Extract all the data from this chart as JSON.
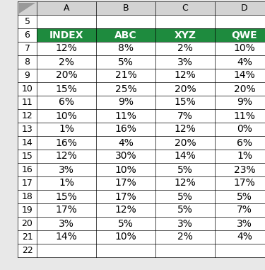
{
  "headers": [
    "INDEX",
    "ABC",
    "XYZ",
    "QWE"
  ],
  "rows": [
    [
      "12%",
      "8%",
      "2%",
      "10%"
    ],
    [
      "2%",
      "5%",
      "3%",
      "4%"
    ],
    [
      "20%",
      "21%",
      "12%",
      "14%"
    ],
    [
      "15%",
      "25%",
      "20%",
      "20%"
    ],
    [
      "6%",
      "9%",
      "15%",
      "9%"
    ],
    [
      "10%",
      "11%",
      "7%",
      "11%"
    ],
    [
      "1%",
      "16%",
      "12%",
      "0%"
    ],
    [
      "16%",
      "4%",
      "20%",
      "6%"
    ],
    [
      "12%",
      "30%",
      "14%",
      "1%"
    ],
    [
      "3%",
      "10%",
      "5%",
      "23%"
    ],
    [
      "1%",
      "17%",
      "12%",
      "17%"
    ],
    [
      "15%",
      "17%",
      "5%",
      "5%"
    ],
    [
      "17%",
      "12%",
      "5%",
      "7%"
    ],
    [
      "3%",
      "5%",
      "3%",
      "3%"
    ],
    [
      "14%",
      "10%",
      "2%",
      "4%"
    ]
  ],
  "row_labels": [
    "7",
    "8",
    "9",
    "10",
    "11",
    "12",
    "13",
    "14",
    "15",
    "16",
    "17",
    "18",
    "19",
    "20",
    "21"
  ],
  "header_bg": "#1E8B3E",
  "header_fg": "#FFFFFF",
  "cell_bg": "#FFFFFF",
  "cell_fg": "#000000",
  "col_labels": [
    "A",
    "B",
    "C",
    "D"
  ],
  "col_header_bg": "#D3D3D3",
  "fig_bg": "#E8E8E8",
  "header_fontsize": 10,
  "cell_fontsize": 10,
  "rownum_fontsize": 9,
  "col_letter_fontsize": 9
}
